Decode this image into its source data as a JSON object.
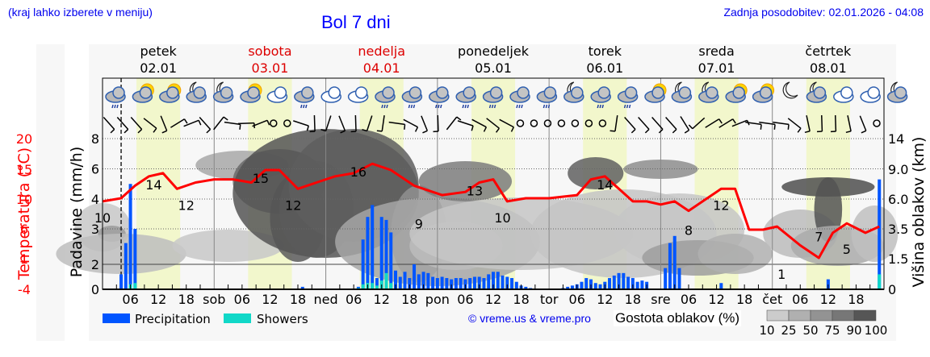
{
  "header": {
    "location_hint": "(kraj lahko izberete v meniju)",
    "title": "Bol 7 dni",
    "last_update": "Zadnja posodobitev: 02.01.2026 - 04:08"
  },
  "days": [
    {
      "name": "petek",
      "date": "02.01",
      "weekend": false,
      "short": ""
    },
    {
      "name": "sobota",
      "date": "03.01",
      "weekend": true,
      "short": "sob"
    },
    {
      "name": "nedelja",
      "date": "04.01",
      "weekend": true,
      "short": "ned"
    },
    {
      "name": "ponedeljek",
      "date": "05.01",
      "weekend": false,
      "short": "pon"
    },
    {
      "name": "torek",
      "date": "06.01",
      "weekend": false,
      "short": "tor"
    },
    {
      "name": "sreda",
      "date": "07.01",
      "weekend": false,
      "short": "sre"
    },
    {
      "name": "četrtek",
      "date": "08.01",
      "weekend": false,
      "short": "čet"
    }
  ],
  "axes": {
    "temperature_label": "Temperatura (°C)",
    "temperature_ticks": [
      "20",
      "15",
      "10",
      "6",
      "1",
      "-4"
    ],
    "precip_label": "Padavine (mm/h)",
    "precip_ticks": [
      "8",
      "6",
      "4",
      "3",
      "2",
      "0"
    ],
    "cloud_height_label": "Višina oblakov (km)",
    "cloud_height_ticks": [
      "14",
      "9.0",
      "6.0",
      "3.5",
      "1.5",
      "0"
    ],
    "x_hour_ticks": [
      "06",
      "12",
      "18"
    ]
  },
  "legend": {
    "precipitation": "Precipitation",
    "showers": "Showers",
    "copyright": "© vreme.us & vreme.pro",
    "cloud_density_title": "Gostota oblakov (%)",
    "cloud_density_steps": [
      "10",
      "25",
      "50",
      "75",
      "90",
      "100"
    ]
  },
  "colors": {
    "precipitation": "#0055ff",
    "showers": "#11d8c8",
    "temperature": "#ff0000",
    "daylight": "#f2f7cc",
    "weekend_text": "#dd0000",
    "link": "#0000ee"
  },
  "chart_data": {
    "type": "line",
    "title": "Bol 7 dni",
    "xlabel": "",
    "ylabel": "Temperatura (°C)",
    "x_range": [
      "02.01 00:00",
      "08.01 24:00"
    ],
    "ylim_temperature": [
      -4,
      20
    ],
    "ylim_precip": [
      0,
      8
    ],
    "series": [
      {
        "name": "Temperatura",
        "x": [
          "02.01 00",
          "02.01 04",
          "02.01 07",
          "02.01 10",
          "02.01 13",
          "02.01 16",
          "02.01 20",
          "03.01 00",
          "03.01 04",
          "03.01 08",
          "03.01 11",
          "03.01 14",
          "03.01 18",
          "03.01 22",
          "04.01 02",
          "04.01 06",
          "04.01 10",
          "04.01 14",
          "04.01 19",
          "05.01 01",
          "05.01 06",
          "05.01 09",
          "05.01 12",
          "05.01 15",
          "05.01 19",
          "06.01 00",
          "06.01 06",
          "06.01 09",
          "06.01 12",
          "06.01 15",
          "06.01 18",
          "06.01 21",
          "07.01 00",
          "07.01 03",
          "07.01 06",
          "07.01 09",
          "07.01 13",
          "07.01 16",
          "07.01 19",
          "07.01 22",
          "08.01 01",
          "08.01 06",
          "08.01 10",
          "08.01 13",
          "08.01 16",
          "08.01 20",
          "08.01 23"
        ],
        "values": [
          10,
          10.5,
          12.5,
          14,
          14.5,
          12,
          13,
          13.5,
          13.5,
          13,
          15,
          15,
          12,
          13,
          14,
          14.5,
          16,
          15,
          12.5,
          11,
          11.5,
          13,
          13.5,
          10,
          10.5,
          10.5,
          11,
          13.5,
          14,
          12,
          10,
          10,
          9.5,
          10,
          8.5,
          10,
          12,
          12,
          5.5,
          5.5,
          6,
          3,
          1,
          5,
          6.5,
          5,
          6
        ]
      },
      {
        "name": "Precipitation",
        "unit": "mm/h",
        "x": [
          "02.01 04",
          "02.01 05",
          "02.01 06",
          "02.01 07",
          "03.01 19",
          "04.01 07",
          "04.01 08",
          "04.01 09",
          "04.01 10",
          "04.01 11",
          "04.01 12",
          "04.01 13",
          "04.01 14",
          "04.01 15",
          "04.01 16",
          "04.01 17",
          "04.01 18",
          "04.01 19",
          "04.01 20",
          "04.01 21",
          "04.01 22",
          "04.01 23",
          "05.01 00",
          "05.01 01",
          "05.01 02",
          "05.01 03",
          "05.01 04",
          "05.01 05",
          "05.01 06",
          "05.01 07",
          "05.01 08",
          "05.01 09",
          "05.01 10",
          "05.01 11",
          "05.01 12",
          "05.01 13",
          "05.01 14",
          "05.01 15",
          "05.01 16",
          "05.01 17",
          "05.01 18",
          "05.01 19",
          "05.01 20",
          "06.01 03",
          "06.01 04",
          "06.01 05",
          "06.01 06",
          "06.01 07",
          "06.01 08",
          "06.01 09",
          "06.01 10",
          "06.01 11",
          "06.01 12",
          "06.01 13",
          "06.01 14",
          "06.01 15",
          "06.01 16",
          "06.01 17",
          "06.01 18",
          "06.01 19",
          "06.01 20",
          "06.01 21",
          "07.01 01",
          "07.01 02",
          "07.01 03",
          "07.01 04",
          "07.01 13",
          "08.01 12",
          "08.01 23"
        ],
        "values": [
          1.2,
          2.6,
          5.0,
          3.0,
          0.2,
          0.2,
          2.7,
          3.4,
          3.8,
          0.9,
          3.4,
          3.3,
          2.9,
          1.5,
          1.0,
          1.4,
          0.9,
          2.0,
          1.2,
          1.4,
          1.3,
          1.0,
          0.9,
          1.0,
          0.9,
          0.8,
          0.9,
          0.9,
          0.8,
          0.9,
          1.0,
          1.0,
          0.9,
          1.2,
          1.4,
          1.4,
          1.1,
          1.0,
          0.9,
          0.6,
          0.3,
          0.2,
          0.1,
          0.1,
          0.2,
          0.3,
          0.4,
          0.6,
          0.9,
          0.8,
          0.5,
          0.4,
          0.6,
          0.9,
          1.1,
          1.3,
          1.3,
          1.0,
          0.9,
          0.6,
          0.7,
          0.6,
          1.7,
          2.6,
          2.8,
          1.7,
          0.5,
          0.8,
          5.3
        ]
      },
      {
        "name": "Showers",
        "unit": "mm/h",
        "x": [
          "02.01 06",
          "02.01 07",
          "04.01 07",
          "04.01 08",
          "04.01 09",
          "04.01 10",
          "04.01 11",
          "04.01 12",
          "04.01 13",
          "04.01 14",
          "08.01 23"
        ],
        "values": [
          0.4,
          0.5,
          0.1,
          0.4,
          0.5,
          0.5,
          0.3,
          0.7,
          1.3,
          0.5,
          1.2
        ]
      }
    ],
    "temperature_labels": [
      {
        "x": "02.01 00",
        "value": 10
      },
      {
        "x": "02.01 11",
        "value": 14
      },
      {
        "x": "02.01 18",
        "value": 12
      },
      {
        "x": "03.01 10",
        "value": 15
      },
      {
        "x": "03.01 17",
        "value": 12
      },
      {
        "x": "04.01 07",
        "value": 16
      },
      {
        "x": "04.01 20",
        "value": 9
      },
      {
        "x": "05.01 08",
        "value": 13
      },
      {
        "x": "05.01 14",
        "value": 10
      },
      {
        "x": "06.01 12",
        "value": 14
      },
      {
        "x": "07.01 06",
        "value": 8
      },
      {
        "x": "07.01 13",
        "value": 12
      },
      {
        "x": "08.01 02",
        "value": 1
      },
      {
        "x": "08.01 10",
        "value": 7
      },
      {
        "x": "08.01 16",
        "value": 5
      }
    ],
    "cloud_density_legend": [
      10,
      25,
      50,
      75,
      90,
      100
    ],
    "grid": true,
    "legend_position": "bottom"
  }
}
